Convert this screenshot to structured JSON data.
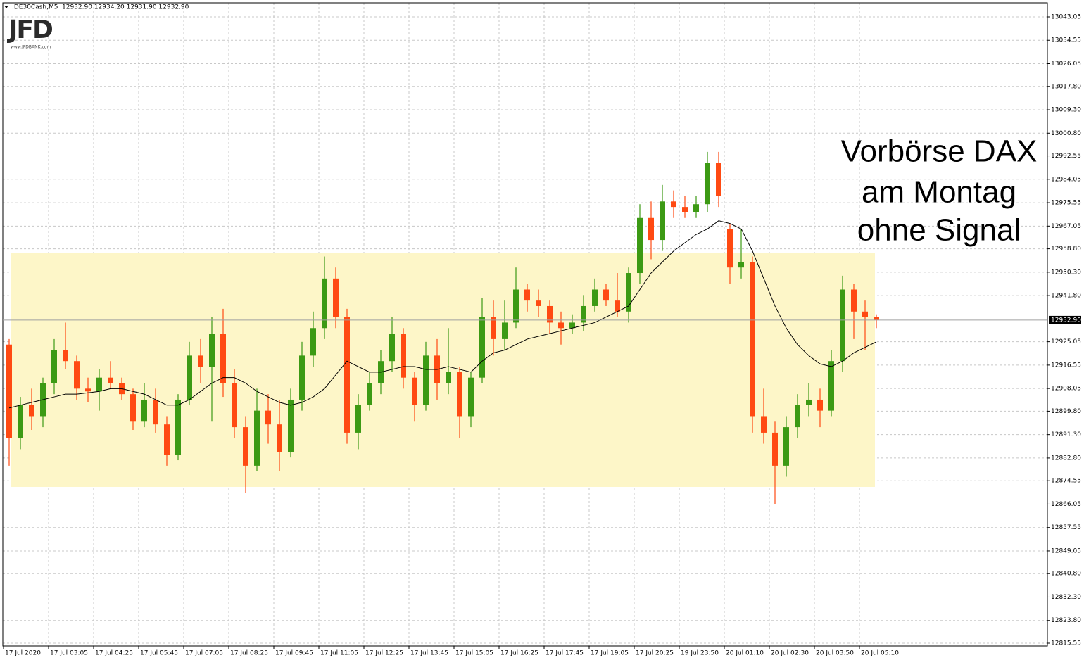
{
  "chart_data": {
    "type": "candlestick",
    "symbol": ".DE30Cash,M5",
    "header_prices": "12932.90 12934.20 12931.90 12932.90",
    "logo": {
      "mark": "JFD",
      "site": "www.JFDBANK.com"
    },
    "annotation": [
      "Vorbörse DAX",
      "am Montag",
      "ohne Signal"
    ],
    "up_color": "#3c9a14",
    "down_color": "#ff4a12",
    "grid": true,
    "categories": [
      "17 Jul 2020",
      null,
      null,
      null,
      "17 Jul 03:05",
      null,
      null,
      null,
      "17 Jul 04:25",
      null,
      null,
      null,
      "17 Jul 05:45",
      null,
      null,
      null,
      "17 Jul 07:05",
      null,
      null,
      null,
      "17 Jul 08:25",
      null,
      null,
      null,
      "17 Jul 09:45",
      null,
      null,
      null,
      "17 Jul 11:05",
      null,
      null,
      null,
      "17 Jul 12:25",
      null,
      null,
      null,
      "17 Jul 13:45",
      null,
      null,
      null,
      "17 Jul 15:05",
      null,
      null,
      null,
      "17 Jul 16:25",
      null,
      null,
      null,
      "17 Jul 17:45",
      null,
      null,
      null,
      "17 Jul 19:05",
      null,
      null,
      null,
      "17 Jul 20:25",
      null,
      null,
      null,
      "19 Jul 23:50",
      null,
      null,
      null,
      "20 Jul 01:10",
      null,
      null,
      null,
      "20 Jul 02:30",
      null,
      null,
      null,
      "20 Jul 03:50",
      null,
      null,
      null,
      "20 Jul 05:10",
      null
    ],
    "open": [
      12924,
      12890,
      12902,
      12898,
      12910,
      12922,
      12918,
      12908,
      12907,
      12912,
      12910,
      12906,
      12896,
      12904,
      12895,
      12884,
      12904,
      12920,
      12916,
      12928,
      12910,
      12894,
      12880,
      12900,
      12895,
      12885,
      12904,
      12920,
      12930,
      12948,
      12934,
      12892,
      12902,
      12910,
      12918,
      12928,
      12912,
      12902,
      12920,
      12910,
      12914,
      12898,
      12912,
      12934,
      12926,
      12932,
      12944,
      12940,
      12938,
      12932,
      12930,
      12932,
      12938,
      12944,
      12940,
      12936,
      12950,
      12970,
      12962,
      12976,
      12974,
      12972,
      12975,
      12990,
      12966,
      12952,
      12954,
      12898,
      12892,
      12880,
      12894,
      12902,
      12904,
      12900,
      12918,
      12944,
      12936,
      12934
    ],
    "high": [
      12926,
      12905,
      12908,
      12912,
      12926,
      12932,
      12920,
      12912,
      12915,
      12918,
      12912,
      12908,
      12910,
      12908,
      12898,
      12906,
      12925,
      12926,
      12934,
      12937,
      12915,
      12898,
      12908,
      12906,
      12904,
      12908,
      12925,
      12936,
      12956,
      12952,
      12937,
      12906,
      12914,
      12922,
      12934,
      12930,
      12914,
      12925,
      12926,
      12930,
      12916,
      12914,
      12941,
      12940,
      12940,
      12952,
      12946,
      12944,
      12940,
      12936,
      12935,
      12942,
      12948,
      12946,
      12950,
      12952,
      12975,
      12976,
      12982,
      12980,
      12978,
      12978,
      12994,
      12994,
      12968,
      12966,
      12956,
      12908,
      12896,
      12898,
      12906,
      12910,
      12908,
      12922,
      12949,
      12946,
      12940,
      12935
    ],
    "low": [
      12880,
      12886,
      12893,
      12894,
      12906,
      12915,
      12904,
      12903,
      12900,
      12908,
      12904,
      12893,
      12894,
      12892,
      12880,
      12882,
      12902,
      12910,
      12896,
      12905,
      12890,
      12870,
      12878,
      12888,
      12878,
      12883,
      12900,
      12916,
      12926,
      12930,
      12888,
      12886,
      12900,
      12906,
      12914,
      12908,
      12896,
      12900,
      12904,
      12906,
      12890,
      12894,
      12910,
      12920,
      12922,
      12930,
      12936,
      12934,
      12928,
      12924,
      12928,
      12929,
      12936,
      12938,
      12934,
      12932,
      12946,
      12955,
      12958,
      12970,
      12970,
      12970,
      12972,
      12974,
      12946,
      12948,
      12892,
      12888,
      12866,
      12876,
      12890,
      12898,
      12894,
      12898,
      12914,
      12926,
      12922,
      12930
    ],
    "close": [
      12890,
      12902,
      12898,
      12910,
      12922,
      12918,
      12908,
      12907,
      12912,
      12910,
      12906,
      12896,
      12904,
      12895,
      12884,
      12904,
      12920,
      12916,
      12928,
      12910,
      12894,
      12880,
      12900,
      12895,
      12885,
      12904,
      12920,
      12930,
      12948,
      12934,
      12892,
      12902,
      12910,
      12918,
      12928,
      12912,
      12902,
      12920,
      12910,
      12914,
      12898,
      12912,
      12934,
      12926,
      12932,
      12944,
      12940,
      12938,
      12932,
      12930,
      12932,
      12938,
      12944,
      12940,
      12936,
      12950,
      12970,
      12962,
      12976,
      12974,
      12972,
      12975,
      12990,
      12978,
      12952,
      12954,
      12898,
      12892,
      12880,
      12894,
      12902,
      12904,
      12900,
      12918,
      12944,
      12936,
      12934,
      12932.9
    ],
    "moving_average": {
      "color": "#000000",
      "values": [
        12901,
        12902,
        12903,
        12904,
        12905,
        12906,
        12906,
        12906.5,
        12907,
        12908,
        12908,
        12907,
        12906,
        12904,
        12902,
        12902,
        12904,
        12907,
        12910,
        12912,
        12912,
        12910,
        12907,
        12905,
        12903,
        12902,
        12903,
        12905,
        12908,
        12913,
        12918,
        12916,
        12914,
        12914,
        12915,
        12916,
        12916,
        12915,
        12915,
        12916,
        12915,
        12914,
        12918,
        12921,
        12922,
        12924,
        12926,
        12927,
        12928,
        12929,
        12930,
        12931,
        12932,
        12934,
        12936,
        12938,
        12944,
        12950,
        12954,
        12958,
        12961,
        12964,
        12966,
        12969,
        12968,
        12966,
        12958,
        12948,
        12938,
        12930,
        12924,
        12920,
        12917,
        12916,
        12918,
        12921,
        12923,
        12925
      ]
    },
    "last_price": {
      "value": 12932.9,
      "label": "12932.90"
    },
    "ylim": [
      12814.53,
      13048.16
    ],
    "yticks": [
      13043.05,
      13034.55,
      13026.05,
      {
        "value": 13017.8,
        "label": "13017.80"
      },
      {
        "value": 13009.3,
        "label": "13009.30"
      },
      {
        "value": 13000.8,
        "label": "13000.80"
      },
      12992.55,
      12984.05,
      12975.55,
      12967.05,
      {
        "value": 12958.8,
        "label": "12958.80"
      },
      {
        "value": 12950.3,
        "label": "12950.30"
      },
      {
        "value": 12941.8,
        "label": "12941.80"
      },
      12925.05,
      12916.55,
      12908.05,
      {
        "value": 12899.8,
        "label": "12899.80"
      },
      {
        "value": 12891.3,
        "label": "12891.30"
      },
      {
        "value": 12882.8,
        "label": "12882.80"
      },
      12874.55,
      12866.05,
      12857.55,
      12849.05,
      {
        "value": 12840.8,
        "label": "12840.80"
      },
      {
        "value": 12832.3,
        "label": "12832.30"
      },
      {
        "value": 12823.8,
        "label": "12823.80"
      },
      12815.55
    ]
  }
}
